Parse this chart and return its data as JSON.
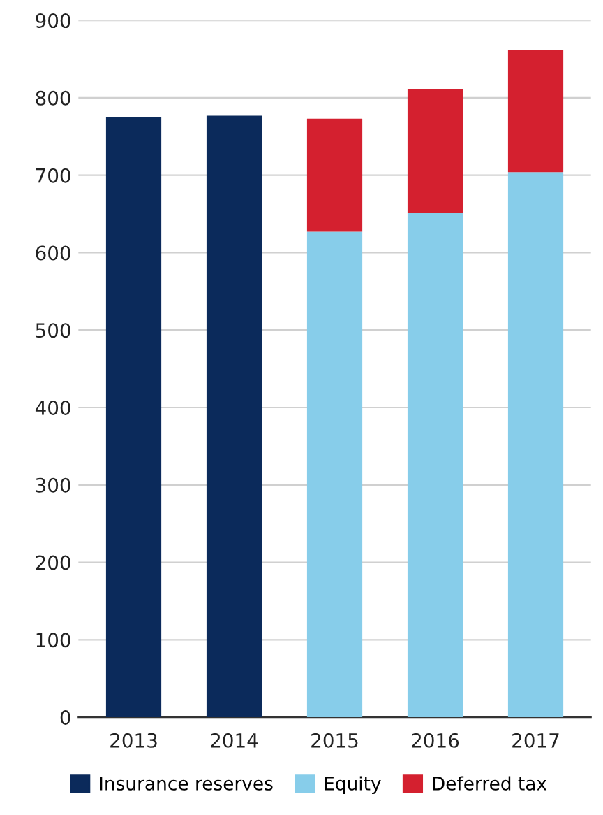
{
  "chart_data": {
    "type": "bar",
    "stacked": true,
    "categories": [
      "2013",
      "2014",
      "2015",
      "2016",
      "2017"
    ],
    "series": [
      {
        "name": "Insurance reserves",
        "color": "#0b2a5b",
        "values": [
          775,
          777,
          null,
          null,
          null
        ]
      },
      {
        "name": "Equity",
        "color": "#87cdea",
        "values": [
          null,
          null,
          627,
          651,
          704
        ]
      },
      {
        "name": "Deferred tax",
        "color": "#d4202f",
        "values": [
          null,
          null,
          146,
          160,
          158
        ]
      }
    ],
    "ylim": [
      0,
      900
    ],
    "yticks": [
      0,
      100,
      200,
      300,
      400,
      500,
      600,
      700,
      800,
      900
    ],
    "grid": "y",
    "legend": "bottom"
  }
}
